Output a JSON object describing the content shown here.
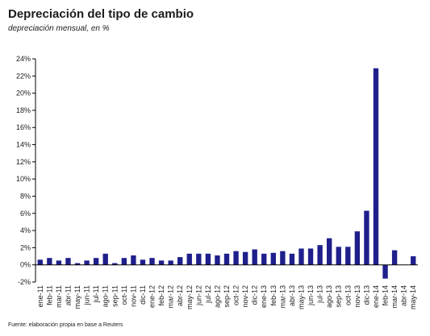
{
  "title": "Depreciación del tipo de cambio",
  "subtitle": "depreciación mensual, en %",
  "source": "Fuente: elaboración propia en base a Reuters",
  "colors": {
    "bar": "#1f1f8c",
    "axis": "#000000",
    "text": "#1c1c1c"
  },
  "chart_data": {
    "type": "bar",
    "ylim": [
      -2,
      24
    ],
    "ytick_step": 2,
    "ytick_suffix": "%",
    "grid": false,
    "categories": [
      "ene-11",
      "feb-11",
      "mar-11",
      "abr-11",
      "may-11",
      "jun-11",
      "jul-11",
      "ago-11",
      "sep-11",
      "oct-11",
      "nov-11",
      "dic-11",
      "ene-12",
      "feb-12",
      "mar-12",
      "abr-12",
      "may-12",
      "jun-12",
      "jul-12",
      "ago-12",
      "sep-12",
      "oct-12",
      "nov-12",
      "dic-12",
      "ene-13",
      "feb-13",
      "mar-13",
      "abr-13",
      "may-13",
      "jun-13",
      "jul-13",
      "ago-13",
      "sep-13",
      "oct-13",
      "nov-13",
      "dic-13",
      "ene-14",
      "feb-14",
      "mar-14",
      "abr-14",
      "may-14"
    ],
    "category_labels": [
      "ene-11",
      "feb-11",
      "mar-11",
      "abr-11",
      "may-11",
      "jun-11",
      "jul-11",
      "ago-11",
      "sep-11",
      "oct-11",
      "nov-11",
      "dic-11",
      "ene-12",
      "feb-12",
      "mar-12",
      "abr-12",
      "may-12",
      "jun-12",
      "jul-12",
      "ago-12",
      "sep-12",
      "oct-12",
      "nov-12",
      "dic-12",
      "ene-13",
      "feb-13",
      "mar-13",
      "abr-13",
      "may-13",
      "jun-13",
      "jul-13",
      "ago-13",
      "sep-13",
      "oct-13",
      "nov-13",
      "dic-13",
      "ene-14",
      "feb-14",
      "mar-14",
      "abr-14",
      "may-14"
    ],
    "values": [
      0.6,
      0.8,
      0.5,
      0.8,
      0.2,
      0.5,
      0.8,
      1.3,
      0.2,
      0.8,
      1.1,
      0.6,
      0.8,
      0.5,
      0.5,
      0.9,
      1.3,
      1.3,
      1.3,
      1.1,
      1.3,
      1.6,
      1.5,
      1.8,
      1.3,
      1.4,
      1.6,
      1.3,
      1.9,
      1.9,
      2.3,
      3.1,
      2.1,
      2.1,
      3.9,
      6.3,
      22.9,
      -1.6,
      1.7,
      0.0,
      1.0
    ]
  }
}
